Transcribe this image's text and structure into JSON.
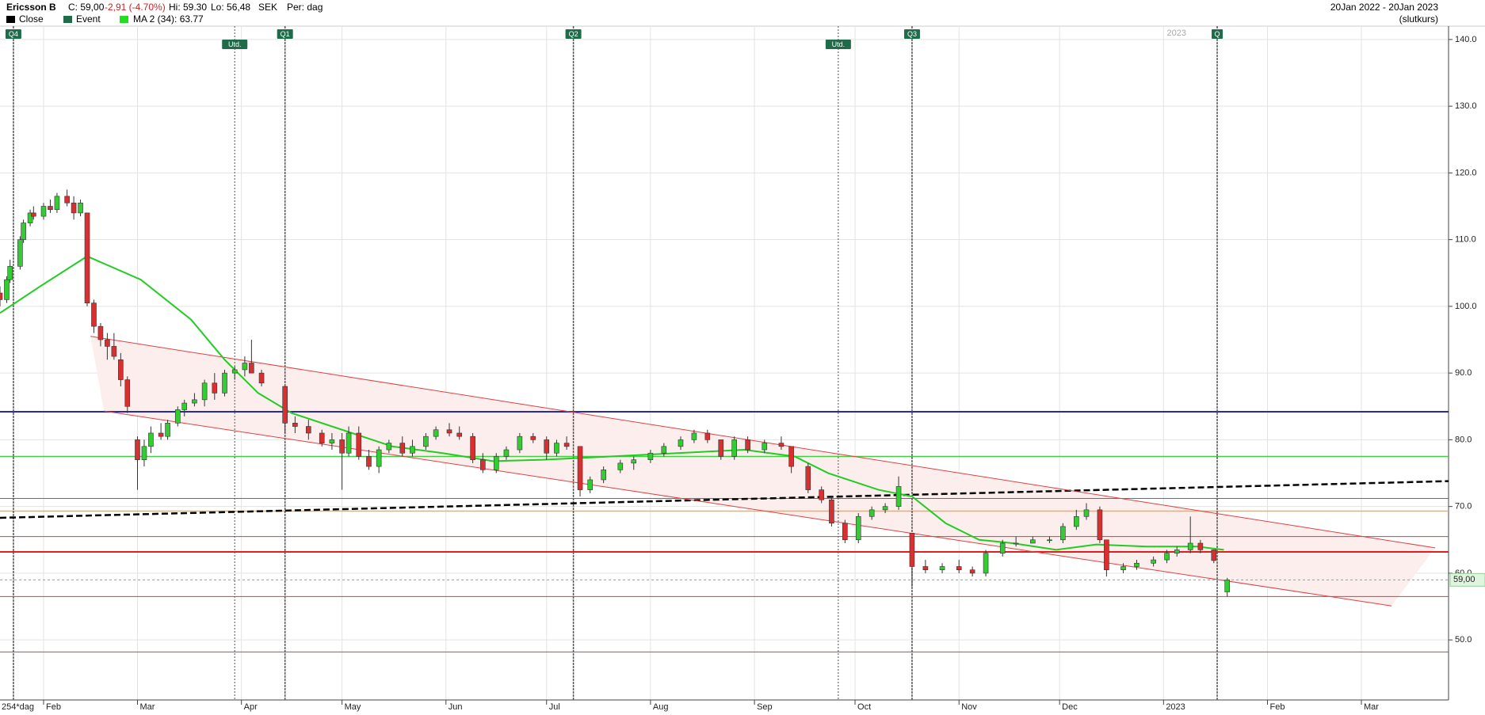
{
  "header": {
    "name": "Ericsson B",
    "close": "C: 59,00",
    "change": "-2,91 (-4.70%)",
    "high": "Hi: 59.30",
    "low": "Lo: 56,48",
    "currency": "SEK",
    "period": "Per: dag",
    "legend": [
      "Close",
      "Event",
      "MA 2 (34): 63.77"
    ],
    "range": "20Jan 2022 - 20Jan 2023",
    "range_note": "(slutkurs)",
    "bars": "254*dag"
  },
  "chart_data": {
    "type": "candlestick",
    "up_color": "#33cc33",
    "down_color": "#d83030",
    "ma_color": "#22cc22",
    "candles": [
      [
        18,
        102,
        103,
        100,
        101
      ],
      [
        20,
        101,
        104.5,
        100.5,
        104
      ],
      [
        21,
        104,
        107,
        103.5,
        106
      ],
      [
        24,
        106,
        110.5,
        105.5,
        110
      ],
      [
        25,
        110,
        113,
        109.5,
        112.5
      ],
      [
        27,
        112.5,
        114.5,
        112,
        114
      ],
      [
        28,
        114,
        115,
        113,
        113.5
      ],
      [
        31,
        113.5,
        115.5,
        113,
        115
      ],
      [
        33,
        115,
        116,
        114,
        114.5
      ],
      [
        35,
        114.5,
        117,
        114,
        116.5
      ],
      [
        38,
        116.5,
        117.5,
        115,
        115.5
      ],
      [
        40,
        115.5,
        116.5,
        113,
        114
      ],
      [
        42,
        114,
        116,
        113.5,
        115.5
      ],
      [
        44,
        114,
        114,
        100,
        100.5
      ],
      [
        46,
        100.5,
        101,
        96,
        97
      ],
      [
        48,
        97,
        97.5,
        94,
        95
      ],
      [
        50,
        95,
        96,
        92,
        94
      ],
      [
        52,
        94,
        96,
        92,
        92.5
      ],
      [
        54,
        92,
        93,
        88,
        89
      ],
      [
        56,
        89,
        89.5,
        84,
        85
      ],
      [
        59,
        80,
        80.5,
        72.5,
        77
      ],
      [
        61,
        77,
        80,
        76,
        79
      ],
      [
        63,
        79,
        82,
        78,
        81
      ],
      [
        66,
        81,
        82.5,
        80,
        80.5
      ],
      [
        68,
        80.5,
        83,
        80,
        82.5
      ],
      [
        71,
        82.5,
        85,
        82,
        84.5
      ],
      [
        73,
        84.5,
        86,
        83.5,
        85.5
      ],
      [
        76,
        85.5,
        87,
        85,
        86
      ],
      [
        79,
        86,
        89,
        85,
        88.5
      ],
      [
        82,
        88.5,
        90,
        86,
        87
      ],
      [
        85,
        87,
        90.5,
        86.5,
        90
      ],
      [
        88,
        90,
        91,
        89,
        90.5
      ],
      [
        91,
        90.5,
        92.5,
        89.5,
        91.5
      ],
      [
        93,
        91.5,
        95,
        90,
        90
      ],
      [
        96,
        90,
        90.5,
        88,
        88.5
      ],
      [
        103,
        88,
        88,
        81,
        82.5
      ],
      [
        106,
        82.5,
        83.5,
        81,
        82
      ],
      [
        110,
        82,
        83,
        80,
        81
      ],
      [
        114,
        81,
        81.5,
        79,
        79.5
      ],
      [
        117,
        79.5,
        81,
        78.5,
        80
      ],
      [
        120,
        80,
        81,
        72.5,
        78
      ],
      [
        122,
        78,
        82,
        77.5,
        81
      ],
      [
        125,
        81,
        82,
        77,
        77.5
      ],
      [
        128,
        77.5,
        78.5,
        75.5,
        76
      ],
      [
        131,
        76,
        79,
        75,
        78.5
      ],
      [
        134,
        78.5,
        80,
        78,
        79.5
      ],
      [
        138,
        79.5,
        80.5,
        77.5,
        78
      ],
      [
        141,
        78,
        80,
        77.5,
        79
      ],
      [
        145,
        79,
        81,
        78.5,
        80.5
      ],
      [
        148,
        80.5,
        82,
        80,
        81.5
      ],
      [
        152,
        81.5,
        82.5,
        80.5,
        81
      ],
      [
        155,
        81,
        82,
        80,
        80.5
      ],
      [
        159,
        80.5,
        81,
        76.5,
        77
      ],
      [
        162,
        77,
        78,
        75,
        75.5
      ],
      [
        166,
        75.5,
        78,
        75,
        77.5
      ],
      [
        169,
        77.5,
        79,
        77,
        78.5
      ],
      [
        173,
        78.5,
        81,
        78,
        80.5
      ],
      [
        177,
        80.5,
        81,
        79.5,
        80
      ],
      [
        181,
        80,
        80.5,
        77,
        78
      ],
      [
        184,
        78,
        80,
        77.5,
        79.5
      ],
      [
        187,
        79.5,
        80.5,
        78.5,
        79
      ],
      [
        191,
        79,
        79,
        71.5,
        72.5
      ],
      [
        194,
        72.5,
        74.5,
        72,
        74
      ],
      [
        198,
        74,
        76,
        73.5,
        75.5
      ],
      [
        203,
        75.5,
        77,
        75,
        76.5
      ],
      [
        207,
        76.5,
        77.5,
        75.5,
        77
      ],
      [
        212,
        77,
        78.5,
        76.5,
        78
      ],
      [
        216,
        78,
        79.5,
        77.5,
        79
      ],
      [
        221,
        79,
        80.5,
        78.5,
        80
      ],
      [
        225,
        80,
        81.5,
        79.5,
        81
      ],
      [
        229,
        81,
        81.5,
        79.5,
        80
      ],
      [
        233,
        80,
        80,
        77,
        77.5
      ],
      [
        237,
        77.5,
        80.5,
        77,
        80
      ],
      [
        241,
        80,
        80.5,
        78,
        78.5
      ],
      [
        246,
        78.5,
        80,
        78,
        79.5
      ],
      [
        251,
        79.5,
        80.5,
        78.5,
        79
      ],
      [
        254,
        79,
        79,
        75,
        76
      ],
      [
        259,
        76,
        76.5,
        72,
        72.5
      ],
      [
        263,
        72.5,
        73,
        70.5,
        71
      ],
      [
        266,
        71,
        71.5,
        67,
        67.5
      ],
      [
        270,
        67.5,
        68,
        64.5,
        65
      ],
      [
        274,
        65,
        69,
        64.5,
        68.5
      ],
      [
        278,
        68.5,
        70,
        68,
        69.5
      ],
      [
        282,
        69.5,
        70.5,
        69,
        70
      ],
      [
        286,
        70,
        74.5,
        69.5,
        73
      ],
      [
        290,
        66,
        66,
        58,
        61
      ],
      [
        294,
        61,
        62,
        60,
        60.5
      ],
      [
        299,
        60.5,
        61.5,
        60,
        61
      ],
      [
        304,
        61,
        62,
        60,
        60.5
      ],
      [
        308,
        60.5,
        61,
        59.5,
        60
      ],
      [
        312,
        60,
        63.5,
        59.5,
        63
      ],
      [
        317,
        63,
        65,
        62.5,
        64.5
      ],
      [
        321,
        64.5,
        65.5,
        64,
        64.5
      ],
      [
        326,
        64.5,
        65.5,
        64.5,
        65
      ],
      [
        331,
        65,
        65.5,
        64.5,
        65
      ],
      [
        335,
        65,
        67.5,
        64.5,
        67
      ],
      [
        339,
        67,
        69.5,
        66.5,
        68.5
      ],
      [
        342,
        68.5,
        70.5,
        68,
        69.5
      ],
      [
        346,
        69.5,
        70,
        64.5,
        65
      ],
      [
        348,
        65,
        65,
        59.5,
        60.5
      ],
      [
        353,
        60.5,
        61.5,
        60,
        61
      ],
      [
        357,
        61,
        62,
        60.5,
        61.5
      ],
      [
        362,
        61.5,
        62.5,
        61,
        62
      ],
      [
        366,
        62,
        63.5,
        61.5,
        63
      ],
      [
        369,
        63,
        64,
        62.5,
        63.5
      ],
      [
        373,
        63.5,
        68.5,
        63,
        64.5
      ],
      [
        376,
        64.5,
        65,
        63,
        63.5
      ],
      [
        380,
        63.5,
        63.5,
        61.5,
        61.9
      ],
      [
        384,
        57.2,
        59.3,
        56.48,
        59
      ]
    ],
    "ma": {
      "x": [
        18,
        30,
        44,
        60,
        75,
        85,
        95,
        105,
        120,
        135,
        150,
        165,
        180,
        200,
        220,
        240,
        255,
        265,
        280,
        290,
        300,
        310,
        320,
        333,
        345,
        360,
        375,
        383
      ],
      "values": [
        99,
        103,
        107.5,
        104,
        98,
        92,
        87,
        84,
        81.5,
        79,
        78,
        76.8,
        77,
        77.5,
        78,
        78.5,
        77.5,
        75,
        72.5,
        71.5,
        67.5,
        65,
        64.5,
        63.5,
        64.3,
        64,
        64,
        63.5
      ]
    },
    "hlines": [
      {
        "value": 84.2,
        "color": "#2a2aa8",
        "width": 2
      },
      {
        "value": 77.5,
        "color": "#44cc44",
        "width": 1.5
      },
      {
        "value": 71.2,
        "color": "#d04040",
        "width": 1
      },
      {
        "value": 69.3,
        "color": "#e8b060",
        "width": 1.5
      },
      {
        "value": 65.5,
        "color": "#d04040",
        "width": 1
      },
      {
        "value": 63.2,
        "color": "#e02020",
        "width": 2
      },
      {
        "value": 56.5,
        "color": "#d04040",
        "width": 1
      },
      {
        "value": 48.2,
        "color": "#d04040",
        "width": 1
      }
    ],
    "trendlines": [
      {
        "x": [
          18,
          450
        ],
        "values": [
          68.3,
          73.8
        ],
        "color": "#000000",
        "width": 2.5,
        "dash": true
      },
      {
        "x": [
          45,
          446
        ],
        "values": [
          95.5,
          63.8
        ],
        "color": "#e04040",
        "width": 1,
        "dash": false
      },
      {
        "x": [
          49,
          433
        ],
        "values": [
          84.3,
          55.1
        ],
        "color": "#e04040",
        "width": 1,
        "dash": false
      }
    ],
    "channel_fill": "#fdeeee",
    "events": [
      {
        "x": 22,
        "label": "Q4"
      },
      {
        "x": 88,
        "label": "Utd."
      },
      {
        "x": 103,
        "label": "Q1"
      },
      {
        "x": 189,
        "label": "Q2"
      },
      {
        "x": 268,
        "label": "Utd."
      },
      {
        "x": 290,
        "label": "Q3"
      },
      {
        "x": 381,
        "label": "Q"
      }
    ],
    "year_label": {
      "x": 366,
      "label": "2023"
    },
    "last_price": {
      "value": 59,
      "label": "59,00"
    },
    "xlim": [
      18,
      450
    ],
    "xticks": [
      {
        "value": 31,
        "label": "Feb"
      },
      {
        "value": 59,
        "label": "Mar"
      },
      {
        "value": 90,
        "label": "Apr"
      },
      {
        "value": 120,
        "label": "May"
      },
      {
        "value": 151,
        "label": "Jun"
      },
      {
        "value": 181,
        "label": "Jul"
      },
      {
        "value": 212,
        "label": "Aug"
      },
      {
        "value": 243,
        "label": "Sep"
      },
      {
        "value": 273,
        "label": "Oct"
      },
      {
        "value": 304,
        "label": "Nov"
      },
      {
        "value": 334,
        "label": "Dec"
      },
      {
        "value": 365,
        "label": "2023"
      },
      {
        "value": 396,
        "label": "Feb"
      },
      {
        "value": 424,
        "label": "Mar"
      }
    ],
    "ylim": [
      41,
      142
    ],
    "yticks": [
      {
        "value": 50,
        "label": "50.0"
      },
      {
        "value": 60,
        "label": "60.0"
      },
      {
        "value": 70,
        "label": "70.0"
      },
      {
        "value": 80,
        "label": "80.0"
      },
      {
        "value": 90,
        "label": "90.0"
      },
      {
        "value": 100,
        "label": "100.0"
      },
      {
        "value": 110,
        "label": "110.0"
      },
      {
        "value": 120,
        "label": "120.0"
      },
      {
        "value": 130,
        "label": "130.0"
      },
      {
        "value": 140,
        "label": "140.0"
      }
    ],
    "grid": true
  }
}
